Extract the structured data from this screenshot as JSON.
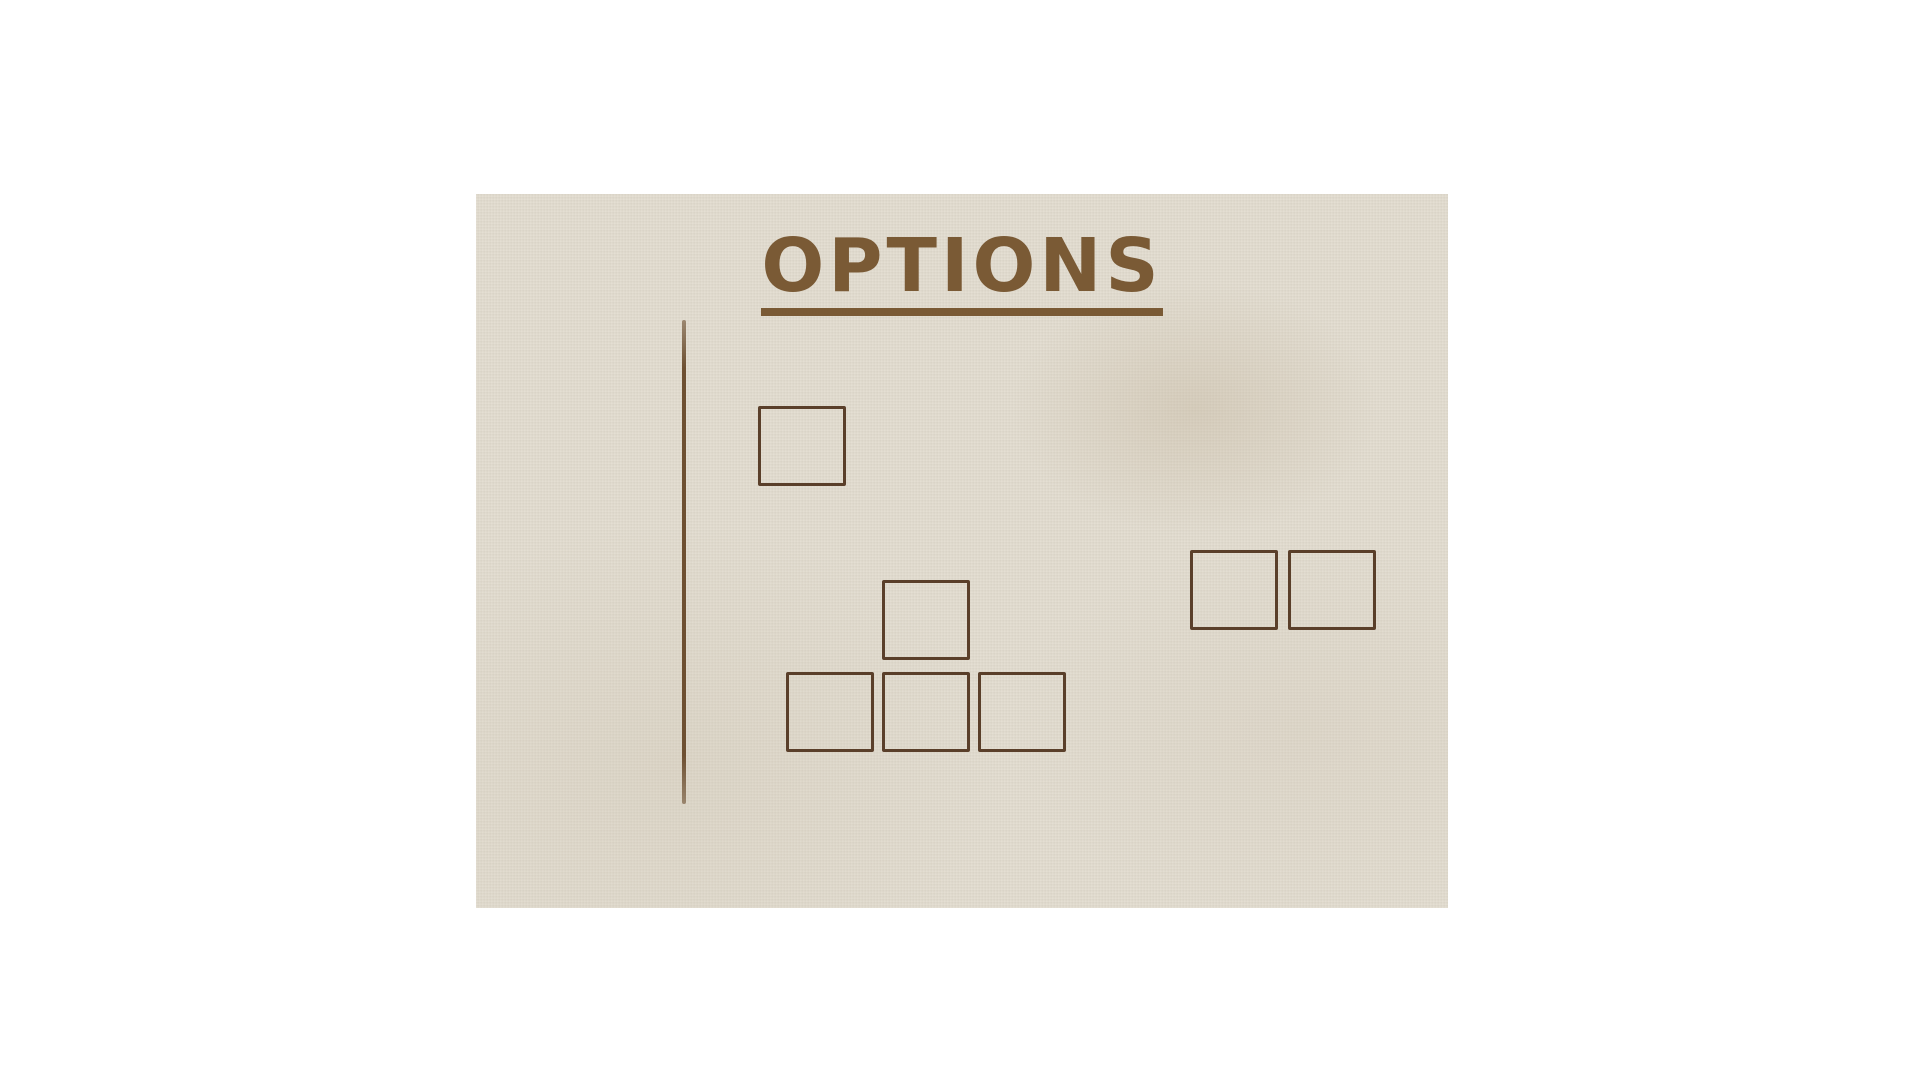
{
  "menu": {
    "title": "OPTIONS"
  },
  "colors": {
    "title": "#7a5a35",
    "slot_border": "#5a3f2a",
    "divider": "#6e5032",
    "panel_background": "#e2dccf"
  },
  "slots": {
    "count": 7,
    "all_empty": true
  }
}
